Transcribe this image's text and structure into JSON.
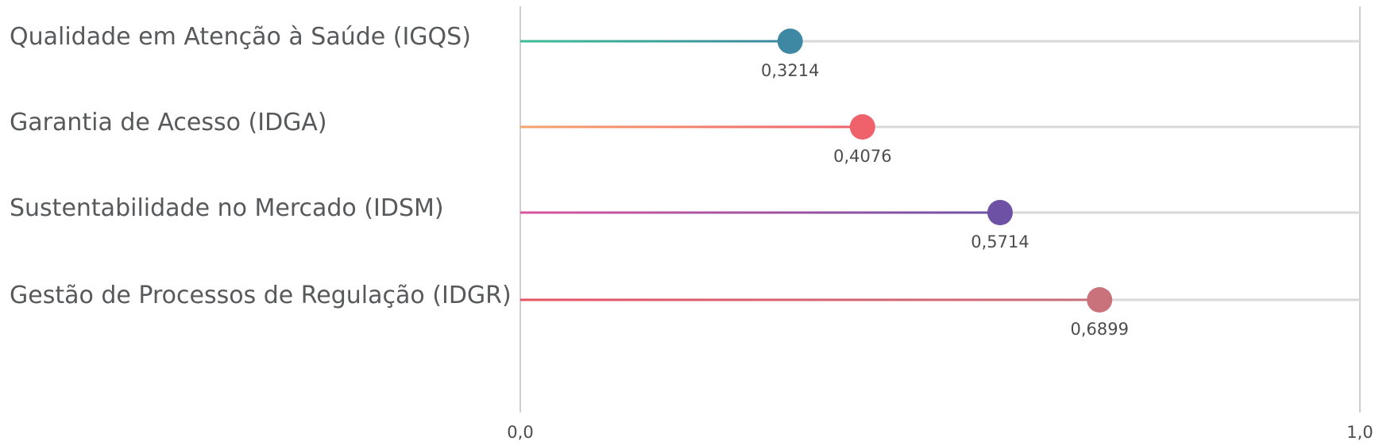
{
  "chart_data": {
    "type": "lollipop",
    "orientation": "horizontal",
    "xlim": [
      0.0,
      1.0
    ],
    "x_ticks": [
      "0,0",
      "1,0"
    ],
    "grid": true,
    "legend": "none",
    "items": [
      {
        "label": "Qualidade em Atenção à Saúde (IGQS)",
        "value": 0.3214,
        "value_label": "0,3214",
        "color_start": "#3dbd96",
        "color_end": "#3d86a0",
        "dot_color": "#3f88a3"
      },
      {
        "label": "Garantia de Acesso (IDGA)",
        "value": 0.4076,
        "value_label": "0,4076",
        "color_start": "#f4a36e",
        "color_end": "#ee5f6a",
        "dot_color": "#ef616b"
      },
      {
        "label": "Sustentabilidade no Mercado (IDSM)",
        "value": 0.5714,
        "value_label": "0,5714",
        "color_start": "#d9559e",
        "color_end": "#6d52a3",
        "dot_color": "#6d51a5"
      },
      {
        "label": "Gestão de Processos de Regulação (IDGR)",
        "value": 0.6899,
        "value_label": "0,6899",
        "color_start": "#e55364",
        "color_end": "#c7707a",
        "dot_color": "#c9727b"
      }
    ],
    "colors": {
      "track": "#d9d9d9",
      "axis": "#cfcfcf",
      "label_text": "#58595b",
      "value_text": "#4d4d4f"
    }
  }
}
